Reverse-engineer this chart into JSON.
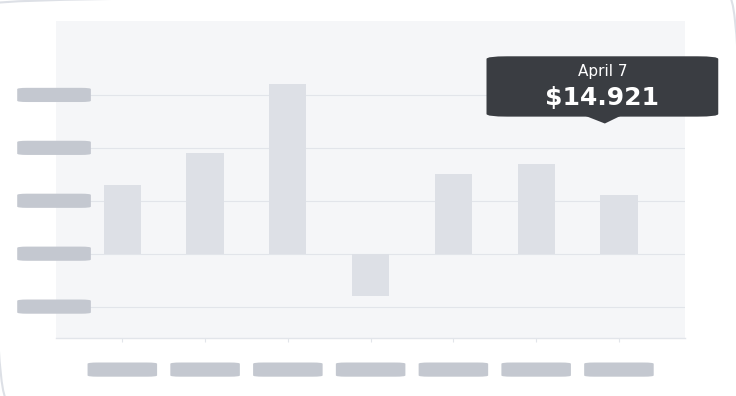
{
  "values": [
    6.5,
    9.5,
    16.0,
    -4.0,
    7.5,
    8.5,
    5.5
  ],
  "bar_color": "#dde0e6",
  "background_color": "#f5f6f8",
  "grid_color": "#e2e5ea",
  "tooltip_bg": "#3a3d42",
  "tooltip_text_color": "#ffffff",
  "tooltip_title": "April 7",
  "tooltip_value": "$14.921",
  "tooltip_bar_index": 4,
  "ylim": [
    -8,
    22
  ],
  "ytick_positions": [
    15,
    10,
    5,
    0,
    -5
  ],
  "figure_bg": "#ffffff",
  "pill_color": "#c4c8d0"
}
